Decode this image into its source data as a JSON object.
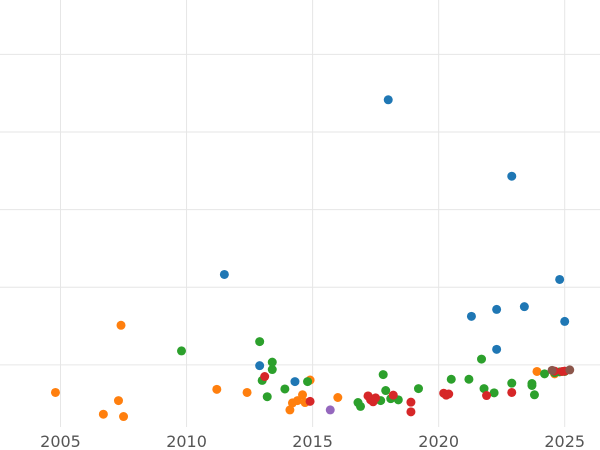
{
  "chart_data": {
    "type": "scatter",
    "title": "",
    "xlabel": "",
    "ylabel": "",
    "xlim": [
      2002.6,
      2026.4
    ],
    "ylim": [
      -1.6,
      9.4
    ],
    "x_ticks": [
      2005,
      2010,
      2015,
      2020,
      2025
    ],
    "x_tick_labels": [
      "2005",
      "2010",
      "2015",
      "2020",
      "2025"
    ],
    "y_gridlines": [
      0,
      2,
      4,
      6,
      8
    ],
    "grid": true,
    "legend": "none",
    "series": [
      {
        "color": "#1f77b4",
        "points": [
          [
            2011.5,
            2.33
          ],
          [
            2012.9,
            -0.02
          ],
          [
            2014.3,
            -0.43
          ],
          [
            2018.0,
            6.83
          ],
          [
            2021.3,
            1.25
          ],
          [
            2022.3,
            1.43
          ],
          [
            2022.3,
            0.4
          ],
          [
            2022.9,
            4.86
          ],
          [
            2023.4,
            1.5
          ],
          [
            2024.8,
            2.2
          ],
          [
            2025.0,
            1.12
          ]
        ]
      },
      {
        "color": "#ff7f0e",
        "points": [
          [
            2004.8,
            -0.71
          ],
          [
            2006.7,
            -1.27
          ],
          [
            2007.3,
            -0.92
          ],
          [
            2007.4,
            1.02
          ],
          [
            2007.5,
            -1.33
          ],
          [
            2011.2,
            -0.63
          ],
          [
            2012.4,
            -0.71
          ],
          [
            2014.1,
            -1.16
          ],
          [
            2014.2,
            -0.98
          ],
          [
            2014.4,
            -0.92
          ],
          [
            2014.6,
            -0.77
          ],
          [
            2014.7,
            -0.97
          ],
          [
            2014.9,
            -0.39
          ],
          [
            2016.0,
            -0.84
          ],
          [
            2017.2,
            -0.8
          ],
          [
            2023.9,
            -0.17
          ],
          [
            2024.6,
            -0.23
          ]
        ]
      },
      {
        "color": "#2ca02c",
        "points": [
          [
            2009.8,
            0.36
          ],
          [
            2012.9,
            0.6
          ],
          [
            2013.0,
            -0.4
          ],
          [
            2013.2,
            -0.82
          ],
          [
            2013.4,
            0.07
          ],
          [
            2013.4,
            -0.12
          ],
          [
            2013.9,
            -0.62
          ],
          [
            2014.8,
            -0.43
          ],
          [
            2016.8,
            -0.97
          ],
          [
            2016.9,
            -1.07
          ],
          [
            2017.3,
            -0.87
          ],
          [
            2017.7,
            -0.92
          ],
          [
            2017.8,
            -0.25
          ],
          [
            2017.9,
            -0.66
          ],
          [
            2018.1,
            -0.87
          ],
          [
            2018.4,
            -0.9
          ],
          [
            2019.2,
            -0.61
          ],
          [
            2020.5,
            -0.37
          ],
          [
            2021.2,
            -0.37
          ],
          [
            2021.7,
            0.15
          ],
          [
            2021.8,
            -0.61
          ],
          [
            2022.2,
            -0.72
          ],
          [
            2022.9,
            -0.47
          ],
          [
            2023.7,
            -0.48
          ],
          [
            2023.7,
            -0.53
          ],
          [
            2023.8,
            -0.77
          ],
          [
            2024.2,
            -0.23
          ],
          [
            2024.6,
            -0.2
          ],
          [
            2024.8,
            -0.18
          ],
          [
            2025.0,
            -0.17
          ]
        ]
      },
      {
        "color": "#d62728",
        "points": [
          [
            2013.1,
            -0.3
          ],
          [
            2014.9,
            -0.94
          ],
          [
            2017.2,
            -0.8
          ],
          [
            2017.3,
            -0.9
          ],
          [
            2017.4,
            -0.95
          ],
          [
            2017.5,
            -0.85
          ],
          [
            2018.2,
            -0.78
          ],
          [
            2018.9,
            -0.96
          ],
          [
            2018.9,
            -1.21
          ],
          [
            2020.2,
            -0.73
          ],
          [
            2020.3,
            -0.78
          ],
          [
            2020.4,
            -0.75
          ],
          [
            2021.9,
            -0.79
          ],
          [
            2022.9,
            -0.71
          ],
          [
            2024.6,
            -0.16
          ],
          [
            2024.9,
            -0.17
          ],
          [
            2025.0,
            -0.16
          ]
        ]
      },
      {
        "color": "#9467bd",
        "points": [
          [
            2015.7,
            -1.16
          ]
        ]
      },
      {
        "color": "#8c564b",
        "points": [
          [
            2024.5,
            -0.14
          ],
          [
            2025.2,
            -0.13
          ]
        ]
      }
    ]
  }
}
